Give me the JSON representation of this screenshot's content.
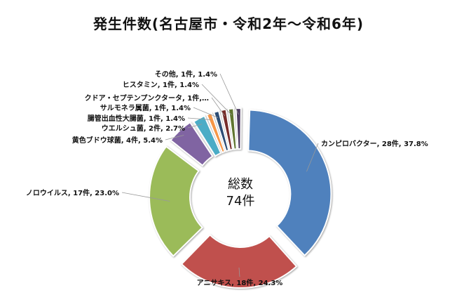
{
  "chart_data": {
    "type": "pie",
    "style": "donut",
    "title": "発生件数(名古屋市・令和2年～令和6年)",
    "center_label": [
      "総数",
      "74件"
    ],
    "slices": [
      {
        "name": "カンピロバクター",
        "value": 28,
        "percent": 37.8,
        "label": "カンピロバクター, 28件, 37.8%",
        "color": "#4F81BD"
      },
      {
        "name": "アニサキス",
        "value": 18,
        "percent": 24.3,
        "label": "アニサキス, 18件, 24.3%",
        "color": "#C0504D"
      },
      {
        "name": "ノロウイルス",
        "value": 17,
        "percent": 23.0,
        "label": "ノロウイルス, 17件, 23.0%",
        "color": "#9BBB59"
      },
      {
        "name": "黄色ブドウ球菌",
        "value": 4,
        "percent": 5.4,
        "label": "黄色ブドウ球菌, 4件, 5.4%",
        "color": "#8064A2"
      },
      {
        "name": "ウエルシュ菌",
        "value": 2,
        "percent": 2.7,
        "label": "ウエルシュ菌, 2件, 2.7%",
        "color": "#4BACC6"
      },
      {
        "name": "腸管出血性大腸菌",
        "value": 1,
        "percent": 1.4,
        "label": "腸管出血性大腸菌, 1件, 1.4%",
        "color": "#F79646"
      },
      {
        "name": "サルモネラ属菌",
        "value": 1,
        "percent": 1.4,
        "label": "サルモネラ属菌, 1件, 1.4%",
        "color": "#2C4D75"
      },
      {
        "name": "クドア・セプテンプンクタータ",
        "value": 1,
        "percent": 1.4,
        "label": "クドア・セプテンプンクタータ, 1件,…",
        "color": "#772C2A"
      },
      {
        "name": "ヒスタミン",
        "value": 1,
        "percent": 1.4,
        "label": "ヒスタミン, 1件, 1.4%",
        "color": "#5F7530"
      },
      {
        "name": "その他",
        "value": 1,
        "percent": 1.4,
        "label": "その他, 1件, 1.4%",
        "color": "#4D3B62"
      }
    ]
  }
}
